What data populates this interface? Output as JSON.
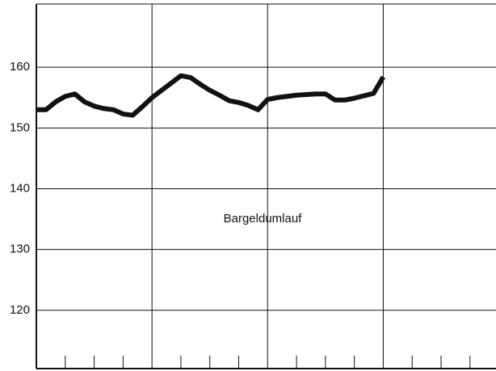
{
  "chart_data": {
    "type": "line",
    "annotation": "Bargeldumlauf",
    "x": [
      0,
      1,
      2,
      3,
      4,
      5,
      6,
      7,
      8,
      9,
      10,
      11,
      12,
      13,
      14,
      15,
      16,
      17,
      18,
      19,
      20,
      21,
      22,
      23,
      24,
      25,
      26,
      27,
      28,
      29,
      30,
      31,
      32,
      33,
      34,
      35,
      36
    ],
    "series": [
      {
        "color": "#111111",
        "values": [
          153.0,
          153.0,
          154.3,
          155.2,
          155.6,
          154.3,
          153.6,
          153.2,
          153.0,
          152.3,
          152.1,
          153.5,
          155.0,
          156.2,
          157.4,
          158.6,
          158.3,
          157.2,
          156.2,
          155.4,
          154.5,
          154.2,
          153.7,
          153.0,
          154.7,
          155.0,
          155.2,
          155.4,
          155.5,
          155.6,
          155.6,
          154.6,
          154.6,
          154.9,
          155.3,
          155.7,
          158.4
        ]
      }
    ],
    "xlim": [
      0,
      47.7
    ],
    "xticks": [
      0,
      12,
      24,
      36
    ],
    "xminor_ticks": [
      3,
      6,
      9,
      15,
      18,
      21,
      27,
      30,
      33,
      39,
      42,
      45
    ],
    "ylim": [
      110.4,
      170.4
    ],
    "yticks": [
      120,
      130,
      140,
      150,
      160
    ],
    "grid": true
  }
}
